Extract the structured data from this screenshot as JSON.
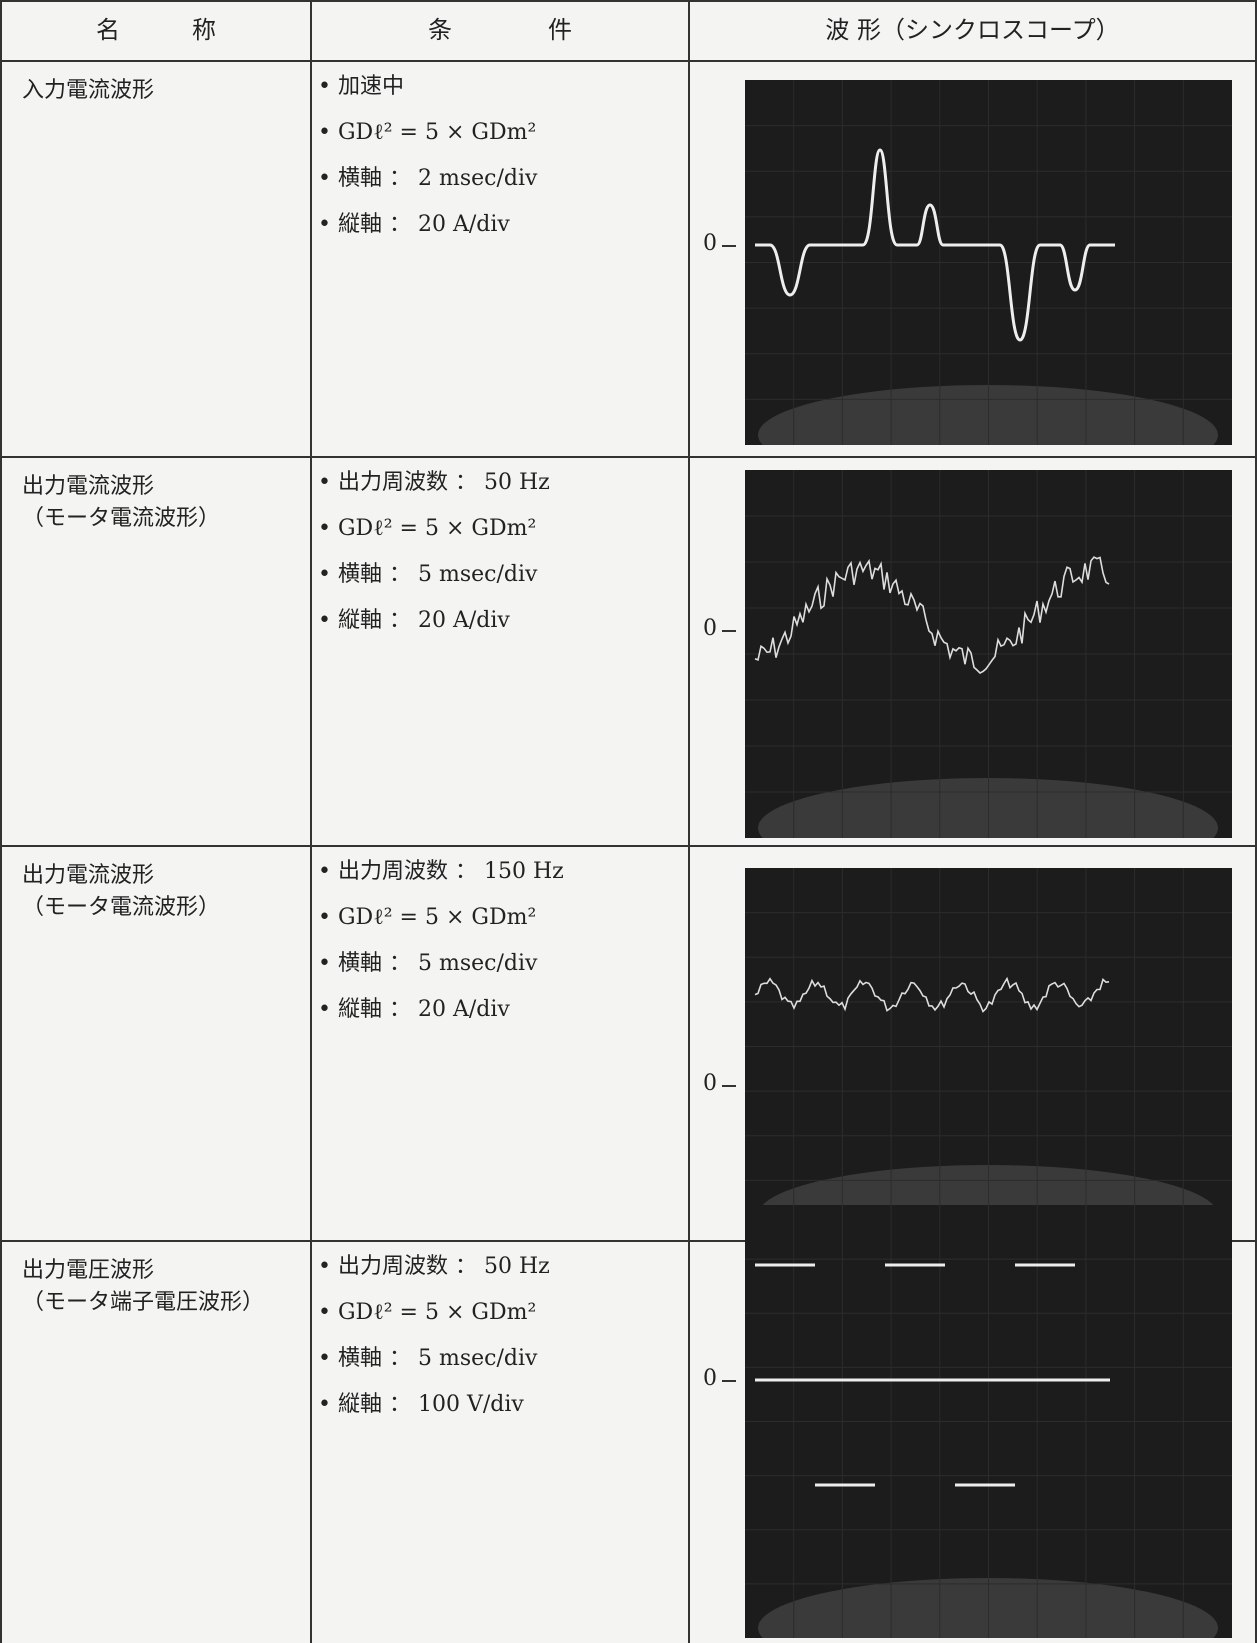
{
  "header": [
    "名　　　称",
    "条　　　　件",
    "波 形（シンクロスコープ）"
  ],
  "rows": [
    {
      "name": [
        "入力電流波形"
      ],
      "conditions": [
        "加速中",
        "GDℓ² = 5 × GDm²",
        "横軸 ： 2 msec/div",
        "縦軸 ： 20 A/div"
      ],
      "zero_label": "0"
    },
    {
      "name": [
        "出力電流波形",
        "（モータ電流波形）"
      ],
      "conditions": [
        "出力周波数 ： 50 Hz",
        "GDℓ² = 5 × GDm²",
        "横軸 ： 5 msec/div",
        "縦軸 ： 20 A/div"
      ],
      "zero_label": "0"
    },
    {
      "name": [
        "出力電流波形",
        "（モータ電流波形）"
      ],
      "conditions": [
        "出力周波数 ： 150 Hz",
        "GDℓ² = 5 × GDm²",
        "横軸 ： 5 msec/div",
        "縦軸 ： 20 A/div"
      ],
      "zero_label": "0"
    },
    {
      "name": [
        "出力電圧波形",
        "（モータ端子電圧波形）"
      ],
      "conditions": [
        "出力周波数 ： 50 Hz",
        "GDℓ² = 5 × GDm²",
        "横軸 ： 5 msec/div",
        "縦軸 ： 100 V/div"
      ],
      "zero_label": "0"
    }
  ]
}
